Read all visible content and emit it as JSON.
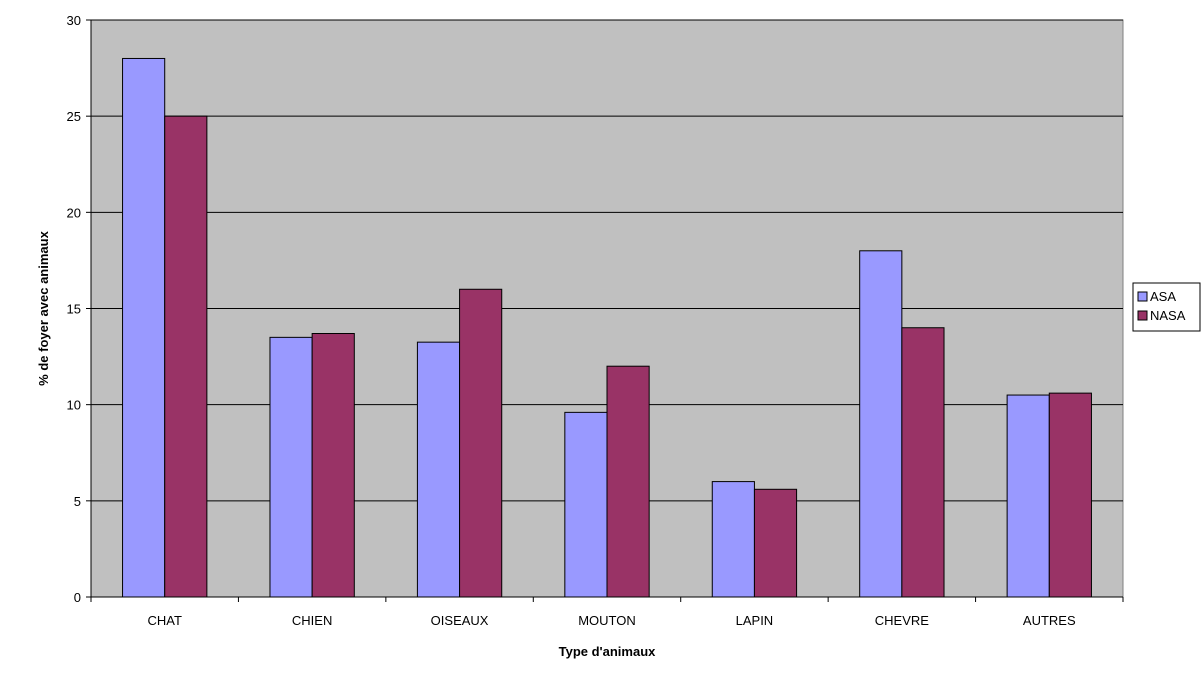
{
  "chart_data": {
    "type": "bar",
    "title": "",
    "xlabel": "Type d'animaux",
    "ylabel": "% de foyer avec animaux",
    "categories": [
      "CHAT",
      "CHIEN",
      "OISEAUX",
      "MOUTON",
      "LAPIN",
      "CHEVRE",
      "AUTRES"
    ],
    "series": [
      {
        "name": "ASA",
        "color": "#9999ff",
        "values": [
          28,
          13.5,
          13.25,
          9.6,
          6,
          18,
          10.5
        ]
      },
      {
        "name": "NASA",
        "color": "#993366",
        "values": [
          25,
          13.7,
          16,
          12,
          5.6,
          14,
          10.6
        ]
      }
    ],
    "ylim": [
      0,
      30
    ],
    "yticks": [
      0,
      5,
      10,
      15,
      20,
      25,
      30
    ],
    "grid": true,
    "plot_background": "#c0c0c0",
    "legend_position": "right"
  }
}
